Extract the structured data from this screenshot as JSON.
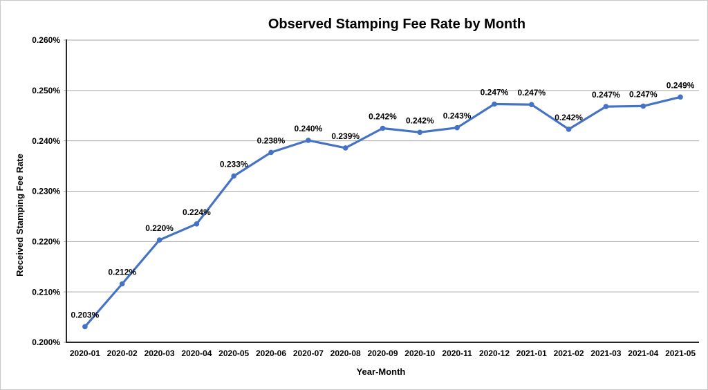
{
  "chart_data": {
    "type": "line",
    "title": "Observed Stamping Fee Rate by Month",
    "xlabel": "Year-Month",
    "ylabel": "Received Stamping Fee Rate",
    "categories": [
      "2020-01",
      "2020-02",
      "2020-03",
      "2020-04",
      "2020-05",
      "2020-06",
      "2020-07",
      "2020-08",
      "2020-09",
      "2020-10",
      "2020-11",
      "2020-12",
      "2021-01",
      "2021-02",
      "2021-03",
      "2021-04",
      "2021-05"
    ],
    "series": [
      {
        "name": "Observed Stamping Fee Rate",
        "values": [
          0.2031,
          0.2116,
          0.2203,
          0.2235,
          0.233,
          0.2377,
          0.2401,
          0.2386,
          0.2425,
          0.2417,
          0.2426,
          0.2473,
          0.2472,
          0.2423,
          0.2468,
          0.2469,
          0.2487
        ],
        "point_labels": [
          "0.203%",
          "0.212%",
          "0.220%",
          "0.224%",
          "0.233%",
          "0.238%",
          "0.240%",
          "0.239%",
          "0.242%",
          "0.242%",
          "0.243%",
          "0.247%",
          "0.247%",
          "0.242%",
          "0.247%",
          "0.247%",
          "0.249%"
        ]
      }
    ],
    "ylim": [
      0.2,
      0.26
    ],
    "ytick_step": 0.01,
    "ytick_labels": [
      "0.200%",
      "0.210%",
      "0.220%",
      "0.230%",
      "0.240%",
      "0.250%",
      "0.260%"
    ],
    "grid": "horizontal",
    "legend": "none",
    "colors": {
      "line": "#4472C4",
      "marker": "#4472C4",
      "gridline": "#A6A6A6",
      "axis": "#262626",
      "text": "#000000"
    },
    "marker": "circle"
  }
}
